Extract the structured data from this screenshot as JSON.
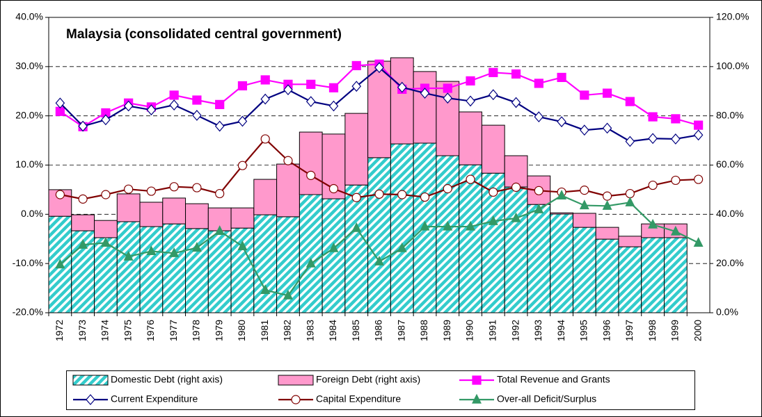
{
  "chart_data": {
    "type": "combo",
    "title": "Malaysia (consolidated central government)",
    "stacked": true,
    "grid": true,
    "categories": [
      "1972",
      "1973",
      "1974",
      "1975",
      "1976",
      "1977",
      "1978",
      "1979",
      "1980",
      "1981",
      "1982",
      "1983",
      "1984",
      "1985",
      "1986",
      "1987",
      "1988",
      "1989",
      "1990",
      "1991",
      "1992",
      "1993",
      "1994",
      "1995",
      "1996",
      "1997",
      "1998",
      "1999",
      "2000"
    ],
    "ylim": [
      -20,
      40
    ],
    "yticks": [
      {
        "value": -20,
        "label": "-20.0%"
      },
      {
        "value": -10,
        "label": "-10.0%"
      },
      {
        "value": 0,
        "label": "0.0%"
      },
      {
        "value": 10,
        "label": "10.0%"
      },
      {
        "value": 20,
        "label": "20.0%"
      },
      {
        "value": 30,
        "label": "30.0%"
      },
      {
        "value": 40,
        "label": "40.0%"
      }
    ],
    "y2lim": [
      0,
      120
    ],
    "y2ticks": [
      {
        "value": 0,
        "label": "0.0%"
      },
      {
        "value": 20,
        "label": "20.0%"
      },
      {
        "value": 40,
        "label": "40.0%"
      },
      {
        "value": 60,
        "label": "60.0%"
      },
      {
        "value": 80,
        "label": "80.0%"
      },
      {
        "value": 100,
        "label": "100.0%"
      },
      {
        "value": 120,
        "label": "120.0%"
      }
    ],
    "series": [
      {
        "name": "Domestic Debt (right axis)",
        "type": "bar",
        "axis": "y2",
        "color": "#33cccc",
        "pattern": "hatch",
        "values": [
          39.2,
          33.3,
          30.5,
          37,
          35,
          36.1,
          34.2,
          33.3,
          34.4,
          39.8,
          39,
          48,
          46.3,
          51.9,
          63,
          68.6,
          68.9,
          63.8,
          60.1,
          56.7,
          51.1,
          44,
          40.1,
          34.7,
          29.9,
          26.8,
          30.5,
          30.5,
          null
        ]
      },
      {
        "name": "Foreign Debt (right axis)",
        "type": "bar",
        "axis": "y2",
        "color": "#ff99cc",
        "values": [
          10.8,
          6.5,
          7,
          11.3,
          9.9,
          10.5,
          10.1,
          9.3,
          8.2,
          14.4,
          21.4,
          25.4,
          26.3,
          29.1,
          39.2,
          35,
          29.1,
          30.2,
          21.5,
          19.5,
          12.7,
          11.6,
          0.5,
          5.7,
          4.8,
          4.3,
          5.6,
          5.6,
          null
        ]
      },
      {
        "name": "Total Revenue and Grants",
        "type": "line",
        "color": "#ff00ff",
        "marker": "square",
        "values": [
          20.9,
          17.8,
          20.6,
          22.6,
          21.8,
          24.2,
          23.2,
          22.3,
          26.1,
          27.3,
          26.4,
          26.4,
          25.7,
          30.2,
          30.5,
          25.4,
          25.6,
          25.6,
          27.1,
          28.8,
          28.5,
          26.6,
          27.8,
          24.2,
          24.6,
          22.9,
          19.8,
          19.4,
          18.1
        ]
      },
      {
        "name": "Current Expenditure",
        "type": "line",
        "color": "#000080",
        "marker": "diamond",
        "values": [
          22.6,
          17.9,
          19.2,
          22,
          21.2,
          22.2,
          20.1,
          17.9,
          18.9,
          23.4,
          25.3,
          22.9,
          22,
          26,
          29.8,
          25.8,
          24.6,
          23.6,
          23,
          24.3,
          22.7,
          19.8,
          18.8,
          17.1,
          17.5,
          14.8,
          15.4,
          15.3,
          16.1
        ]
      },
      {
        "name": "Capital Expenditure",
        "type": "line",
        "color": "#800000",
        "marker": "circle",
        "values": [
          4,
          3.1,
          4,
          5.1,
          4.7,
          5.6,
          5.4,
          4.2,
          9.9,
          15.3,
          10.9,
          7.9,
          5.2,
          3.4,
          4.1,
          4,
          3.5,
          5.2,
          7.1,
          4.5,
          5.5,
          4.8,
          4.5,
          4.9,
          3.7,
          4.2,
          5.9,
          6.9,
          7.1
        ]
      },
      {
        "name": "Over-all Deficit/Surplus",
        "type": "line",
        "color": "#339966",
        "marker": "triangle",
        "values": [
          -10.2,
          -6.2,
          -5.8,
          -8.6,
          -7.5,
          -7.9,
          -6.8,
          -3.4,
          -6.5,
          -15.4,
          -16.5,
          -10,
          -6.9,
          -2.8,
          -9.6,
          -6.9,
          -2.5,
          -2.5,
          -2.5,
          -1.4,
          -0.8,
          1,
          3.8,
          1.8,
          1.7,
          2.4,
          -2.1,
          -3.5,
          -5.8
        ]
      }
    ]
  }
}
